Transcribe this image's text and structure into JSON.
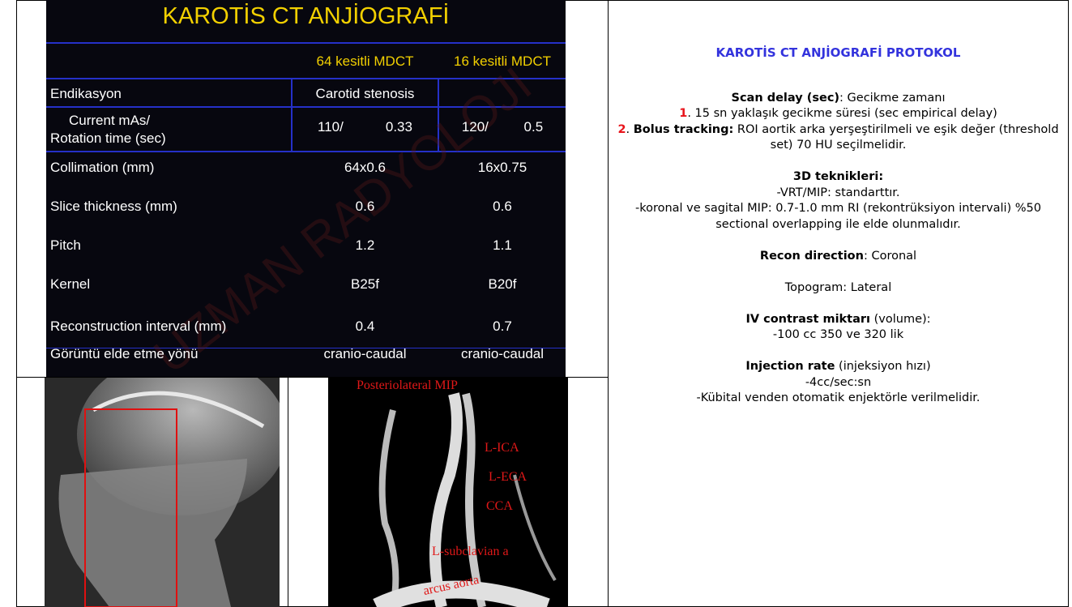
{
  "table": {
    "title": "KAROTİS CT ANJİOGRAFİ",
    "columns": [
      "64 kesitli MDCT",
      "16 kesitli MDCT"
    ],
    "rows": [
      {
        "label": [
          "Endikasyon"
        ],
        "values": [
          [
            "Carotid stenosis"
          ]
        ]
      },
      {
        "label": [
          "Current mAs/",
          "Rotation time (sec)"
        ],
        "values": [
          [
            "110/",
            "0.33"
          ],
          [
            "120/",
            "0.5"
          ]
        ]
      },
      {
        "label": [
          "Collimation (mm)"
        ],
        "values": [
          [
            "64x0.6"
          ],
          [
            "16x0.75"
          ]
        ]
      },
      {
        "label": [
          "Slice thickness (mm)"
        ],
        "values": [
          [
            "0.6"
          ],
          [
            "0.6"
          ]
        ]
      },
      {
        "label": [
          "Pitch"
        ],
        "values": [
          [
            "1.2"
          ],
          [
            "1.1"
          ]
        ]
      },
      {
        "label": [
          "Kernel"
        ],
        "values": [
          [
            "B25f"
          ],
          [
            "B20f"
          ]
        ]
      },
      {
        "label": [
          "Reconstruction interval (mm)"
        ],
        "values": [
          [
            "0.4"
          ],
          [
            "0.7"
          ]
        ]
      },
      {
        "label": [
          "Görüntü elde etme yönü"
        ],
        "values": [
          [
            "cranio-caudal"
          ],
          [
            "cranio-caudal"
          ]
        ]
      }
    ],
    "watermark": "UZMAN RADYOLOJİ"
  },
  "angiogram": {
    "labels": [
      "Posteriolateral MIP",
      "L-ICA",
      "L-ECA",
      "CCA",
      "L-subclavian a",
      "arcus aorta"
    ]
  },
  "protocol": {
    "title": "KAROTİS CT ANJİOGRAFİ PROTOKOL",
    "paragraphs": [
      [
        [
          {
            "text": "Scan delay (sec)",
            "bold": true
          },
          {
            "text": ": Gecikme zamanı"
          }
        ],
        [
          {
            "text": "1",
            "bold": true,
            "color": "#e8141b"
          },
          {
            "text": ". 15 sn yaklaşık gecikme süresi (sec empirical delay)"
          }
        ],
        [
          {
            "text": "2",
            "bold": true,
            "color": "#e8141b"
          },
          {
            "text": ". "
          },
          {
            "text": "Bolus tracking:",
            "bold": true
          },
          {
            "text": " ROI aortik arka yerşeştirilmeli ve eşik değer (threshold set) 70 HU seçilmelidir."
          }
        ]
      ],
      [
        [
          {
            "text": "3D teknikleri:",
            "bold": true
          }
        ],
        [
          {
            "text": "-VRT/MIP: standarttır."
          }
        ],
        [
          {
            "text": "-koronal ve sagital MIP: 0.7-1.0 mm RI (rekontrüksiyon intervali) %50 sectional overlapping ile elde olunmalıdır."
          }
        ]
      ],
      [
        [
          {
            "text": "Recon direction",
            "bold": true
          },
          {
            "text": ": Coronal"
          }
        ]
      ],
      [
        [
          {
            "text": "Topogram: Lateral"
          }
        ]
      ],
      [
        [
          {
            "text": "IV contrast miktarı",
            "bold": true
          },
          {
            "text": " (volume):"
          }
        ],
        [
          {
            "text": "-100 cc 350 ve 320 lik"
          }
        ]
      ],
      [
        [
          {
            "text": "Injection rate",
            "bold": true
          },
          {
            "text": " (injeksiyon hızı)"
          }
        ],
        [
          {
            "text": "-4cc/sec:sn"
          }
        ],
        [
          {
            "text": "-Kübital venden otomatik enjektörle verilmelidir."
          }
        ]
      ]
    ]
  }
}
